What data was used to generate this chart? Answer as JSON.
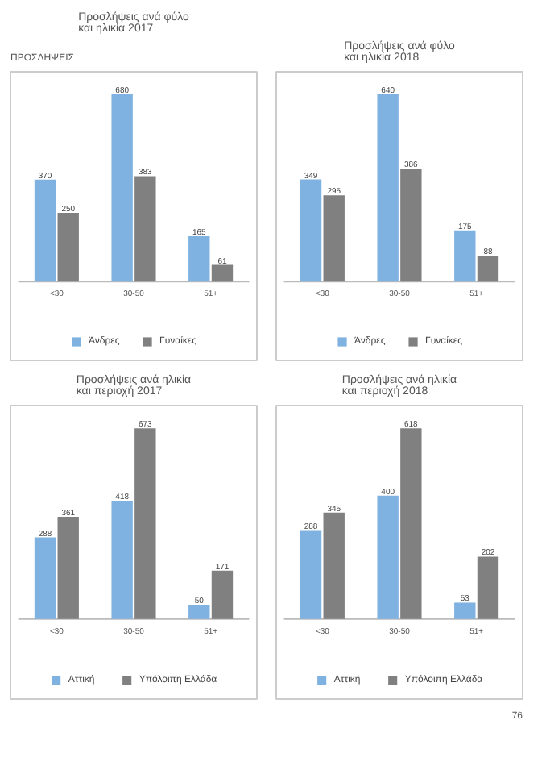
{
  "chart_data": [
    {
      "type": "bar",
      "title": "Προσλήψεις ανά φύλο\nκαι ηλικία 2017",
      "categories": [
        "<30",
        "30-50",
        "51+"
      ],
      "data_labels": true,
      "legend": "bottom",
      "grid": false,
      "annotations": [
        "ΠΡΟΣΛΗΨΕΙΣ"
      ],
      "series": [
        {
          "name": "Άνδρες",
          "color": "#7fb2e0",
          "values": [
            370,
            680,
            165
          ]
        },
        {
          "name": "Γυναίκες",
          "color": "#808080",
          "values": [
            250,
            383,
            61
          ]
        }
      ]
    },
    {
      "type": "bar",
      "title": "Προσλήψεις ανά φύλο\nκαι ηλικία 2018",
      "categories": [
        "<30",
        "30-50",
        "51+"
      ],
      "data_labels": true,
      "legend": "bottom",
      "grid": false,
      "series": [
        {
          "name": "Άνδρες",
          "color": "#7fb2e0",
          "values": [
            349,
            640,
            175
          ]
        },
        {
          "name": "Γυναίκες",
          "color": "#808080",
          "values": [
            295,
            386,
            88
          ]
        }
      ]
    },
    {
      "type": "bar",
      "title": "Προσλήψεις ανά ηλικία\nκαι περιοχή 2017",
      "categories": [
        "<30",
        "30-50",
        "51+"
      ],
      "data_labels": true,
      "legend": "bottom",
      "grid": false,
      "series": [
        {
          "name": "Αττική",
          "color": "#7fb2e0",
          "values": [
            288,
            418,
            50
          ]
        },
        {
          "name": "Υπόλοιπη Ελλάδα",
          "color": "#808080",
          "values": [
            361,
            673,
            171
          ]
        }
      ]
    },
    {
      "type": "bar",
      "title": "Προσλήψεις ανά ηλικία\nκαι περιοχή 2018",
      "categories": [
        "<30",
        "30-50",
        "51+"
      ],
      "data_labels": true,
      "legend": "bottom",
      "grid": false,
      "annotations": [
        "76"
      ],
      "series": [
        {
          "name": "Αττική",
          "color": "#7fb2e0",
          "values": [
            288,
            400,
            53
          ]
        },
        {
          "name": "Υπόλοιπη Ελλάδα",
          "color": "#808080",
          "values": [
            345,
            618,
            202
          ]
        }
      ]
    }
  ]
}
